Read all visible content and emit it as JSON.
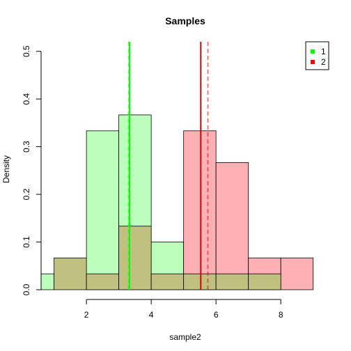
{
  "chart_data": {
    "type": "histogram",
    "title": "Samples",
    "xlabel": "sample2",
    "ylabel": "Density",
    "xlim": [
      0.6,
      9.2
    ],
    "ylim": [
      0,
      0.52
    ],
    "x_ticks": [
      2,
      4,
      6,
      8
    ],
    "y_ticks": [
      0.0,
      0.1,
      0.2,
      0.3,
      0.4,
      0.5
    ],
    "y_tick_labels": [
      "0.0",
      "0.1",
      "0.2",
      "0.3",
      "0.4",
      "0.5"
    ],
    "grid": false,
    "legend_position": "top-right",
    "series": [
      {
        "name": "1",
        "color": "#00ff00",
        "fill": "#bbffbb",
        "bins": [
          {
            "x0": 0.5,
            "x1": 1.0,
            "density": 0.0333
          },
          {
            "x0": 2.0,
            "x1": 3.0,
            "density": 0.3333
          },
          {
            "x0": 3.0,
            "x1": 4.0,
            "density": 0.3667
          },
          {
            "x0": 4.0,
            "x1": 5.0,
            "density": 0.1
          }
        ],
        "mean": 3.33,
        "median": 3.3
      },
      {
        "name": "2",
        "color": "#dd0000",
        "fill": "#ffb0b4",
        "bins": [
          {
            "x0": 5.0,
            "x1": 6.0,
            "density": 0.3333
          },
          {
            "x0": 6.0,
            "x1": 7.0,
            "density": 0.2667
          },
          {
            "x0": 7.0,
            "x1": 8.0,
            "density": 0.0667
          },
          {
            "x0": 8.0,
            "x1": 9.0,
            "density": 0.0667
          }
        ],
        "mean": 5.53,
        "median": 5.75
      }
    ],
    "overlap_fill": "#c0c080",
    "overlap_bins": [
      {
        "x0": 1.0,
        "x1": 2.0,
        "density": 0.0667
      },
      {
        "x0": 2.0,
        "x1": 3.0,
        "density": 0.0333
      },
      {
        "x0": 3.0,
        "x1": 4.0,
        "density": 0.1333
      },
      {
        "x0": 4.0,
        "x1": 5.0,
        "density": 0.0333
      },
      {
        "x0": 5.0,
        "x1": 6.0,
        "density": 0.0333
      },
      {
        "x0": 6.0,
        "x1": 7.0,
        "density": 0.0333
      },
      {
        "x0": 7.0,
        "x1": 8.0,
        "density": 0.0333
      }
    ],
    "legend": [
      {
        "label": "1",
        "color": "#00ff00"
      },
      {
        "label": "2",
        "color": "#ff0000"
      }
    ]
  }
}
